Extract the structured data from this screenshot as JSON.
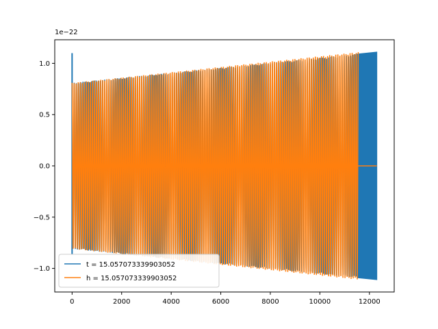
{
  "chart_data": {
    "type": "line",
    "title": "",
    "xlabel": "",
    "ylabel": "",
    "y_scale_exponent_label": "1e−22",
    "xlim": [
      -700,
      13000
    ],
    "ylim": [
      -1.23,
      1.23
    ],
    "xticks": [
      0,
      2000,
      4000,
      6000,
      8000,
      10000,
      12000
    ],
    "xtick_labels": [
      "0",
      "2000",
      "4000",
      "6000",
      "8000",
      "10000",
      "12000"
    ],
    "yticks": [
      -1.0,
      -0.5,
      0.0,
      0.5,
      1.0
    ],
    "ytick_labels": [
      "−1.0",
      "−0.5",
      "0.0",
      "0.5",
      "1.0"
    ],
    "grid": false,
    "legend_position": "lower-left",
    "series": [
      {
        "name": "t = 15.057073339903052",
        "color": "#1f77b4",
        "x_start": 0,
        "x_end": 12300,
        "amplitude_start": 0.81,
        "amplitude_end": 1.11,
        "initial_spike": 1.1,
        "n_cycles": 140,
        "dense_segment": [
          11500,
          12300
        ]
      },
      {
        "name": "h = 15.057073339903052",
        "color": "#ff7f0e",
        "x_start": 0,
        "x_end": 11550,
        "amplitude_start": 0.81,
        "amplitude_end": 1.11,
        "n_cycles": 140,
        "flat_segment": [
          11550,
          12300
        ],
        "flat_value": 0.0
      }
    ]
  }
}
